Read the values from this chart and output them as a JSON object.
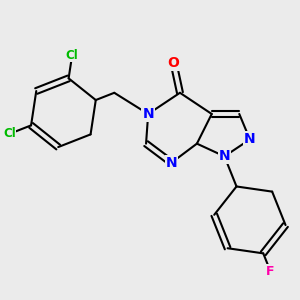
{
  "background_color": "#ebebeb",
  "bond_color": "#000000",
  "atom_colors": {
    "Cl": "#00bb00",
    "F": "#ff00aa",
    "N": "#0000ff",
    "O": "#ff0000",
    "C": "#000000"
  },
  "line_width": 1.5,
  "figsize": [
    3.0,
    3.0
  ],
  "dpi": 100
}
